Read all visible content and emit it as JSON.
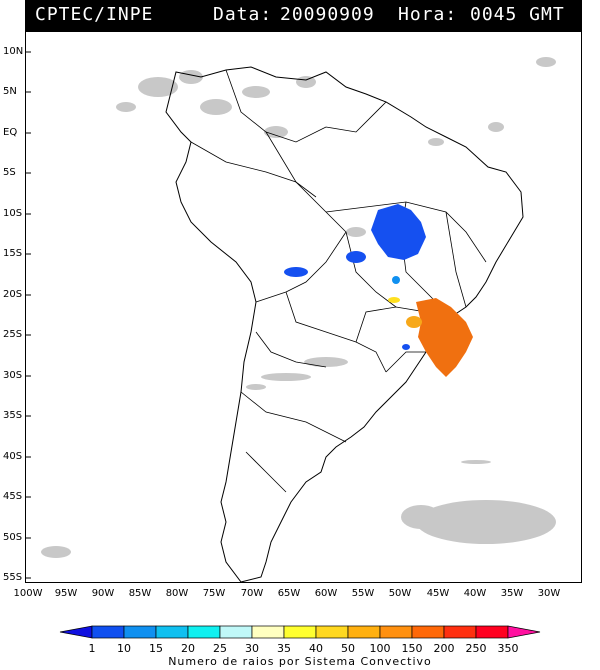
{
  "header": {
    "source": "CPTEC/INPE",
    "date_label": "Data:",
    "date_value": "20090909",
    "time_label": "Hora:",
    "time_value": "0045 GMT"
  },
  "map": {
    "lat_labels": [
      "10N",
      "5N",
      "EQ",
      "5S",
      "10S",
      "15S",
      "20S",
      "25S",
      "30S",
      "35S",
      "40S",
      "45S",
      "50S",
      "55S"
    ],
    "lon_labels": [
      "100W",
      "95W",
      "90W",
      "85W",
      "80W",
      "75W",
      "70W",
      "65W",
      "60W",
      "55W",
      "50W",
      "45W",
      "40W",
      "35W",
      "30W"
    ],
    "storm_systems": [
      {
        "name": "central-brazil-system",
        "range": "10",
        "color": "#1550f0"
      },
      {
        "name": "bolivia-system",
        "range": "10",
        "color": "#1550f0"
      },
      {
        "name": "mato-grosso-small-system",
        "range": "10",
        "color": "#1550f0"
      },
      {
        "name": "southeast-brazil-system",
        "range": "150-200",
        "color": "#f07010"
      },
      {
        "name": "sao-paulo-system",
        "range": "100",
        "color": "#f7a81a"
      },
      {
        "name": "parana-yellow-system",
        "range": "40-50",
        "color": "#ffe020"
      }
    ]
  },
  "colorbar": {
    "values": [
      "1",
      "10",
      "15",
      "20",
      "25",
      "30",
      "35",
      "40",
      "50",
      "100",
      "150",
      "200",
      "250",
      "350"
    ],
    "colors": [
      "#1010e0",
      "#1050f0",
      "#1090f0",
      "#10c0f0",
      "#10f0f0",
      "#c0f8f8",
      "#ffffc0",
      "#ffff30",
      "#ffd820",
      "#ffb010",
      "#ff9010",
      "#ff6808",
      "#ff3010",
      "#ff0020",
      "#ff10a0"
    ],
    "title": "Numero de raios por Sistema Convectivo"
  }
}
